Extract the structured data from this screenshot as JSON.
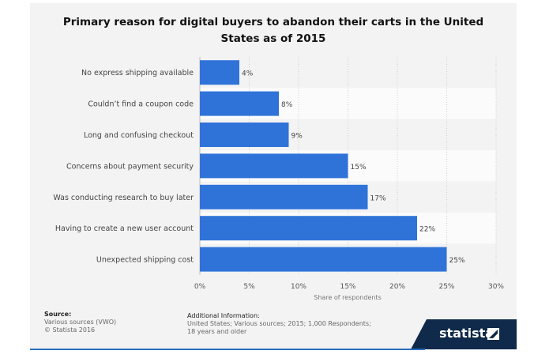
{
  "chart_data": {
    "type": "bar",
    "orientation": "horizontal",
    "title": "Primary reason for digital buyers to abandon their carts in the United States as of 2015",
    "title_lines": [
      "Primary reason for digital buyers to abandon their carts in the United",
      "States as of 2015"
    ],
    "categories": [
      "No express shipping available",
      "Couldn’t find a coupon code",
      "Long and confusing checkout",
      "Concerns about payment security",
      "Was conducting research to buy later",
      "Having to create a new user account",
      "Unexpected shipping cost"
    ],
    "values": [
      4,
      8,
      9,
      15,
      17,
      22,
      25
    ],
    "value_labels": [
      "4%",
      "8%",
      "9%",
      "15%",
      "17%",
      "22%",
      "25%"
    ],
    "xlabel": "Share of respondents",
    "ylabel": "",
    "xlim": [
      0,
      30
    ],
    "ticks": [
      0,
      5,
      10,
      15,
      20,
      25,
      30
    ],
    "tick_labels": [
      "0%",
      "5%",
      "10%",
      "15%",
      "20%",
      "25%",
      "30%"
    ],
    "bar_color": "#2f73d9"
  },
  "footer": {
    "source_heading": "Source:",
    "source_line1": "Various sources (VWO)",
    "source_line2": "© Statista 2016",
    "info_heading": "Additional Information:",
    "info_text": "United States; Various sources; 2015; 1,000 Respondents; 18 years and older"
  },
  "brand": {
    "name": "statista",
    "mark_icon": "statista-logo-icon"
  }
}
